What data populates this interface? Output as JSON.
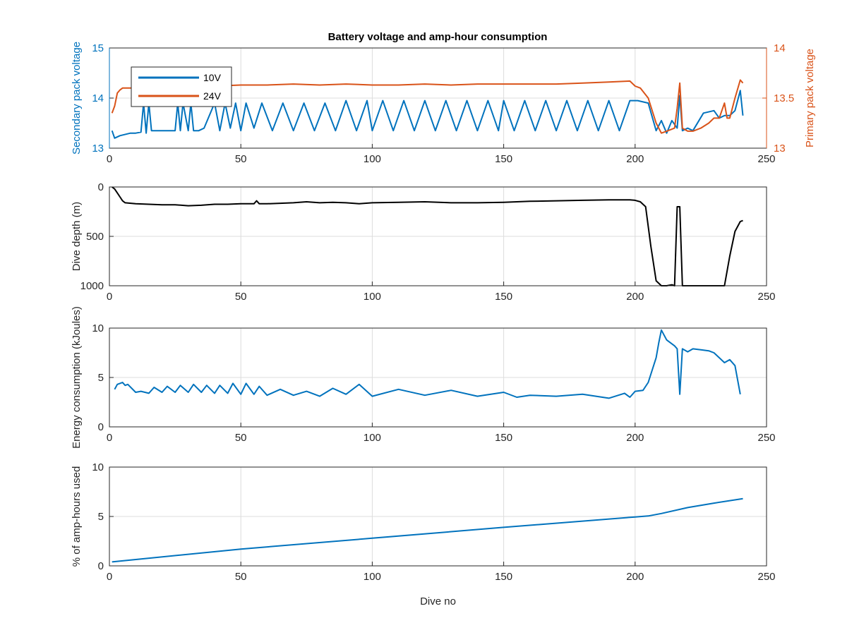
{
  "title": "Battery voltage and amp-hour consumption",
  "colors": {
    "blue": "#0072BD",
    "orange": "#D95319",
    "black": "#000000"
  },
  "chart_data": [
    {
      "type": "line",
      "title": "Battery voltage and amp-hour consumption",
      "xlabel": "",
      "ylabel": "Secondary pack voltage",
      "ylabel_right": "Primary pack voltage",
      "xlim": [
        0,
        250
      ],
      "ylim": [
        13,
        15
      ],
      "ylim_right": [
        13,
        14
      ],
      "xticks": [
        "0",
        "50",
        "100",
        "150",
        "200",
        "250"
      ],
      "yticks": [
        "13",
        "14",
        "15"
      ],
      "yticks_right": [
        "13",
        "13.5",
        "14"
      ],
      "grid": true,
      "legend": {
        "position": "top-left",
        "entries": [
          "10V",
          "24V"
        ]
      },
      "series": [
        {
          "name": "10V",
          "axis": "left",
          "color": "#0072BD",
          "x": [
            1,
            2,
            4,
            8,
            10,
            12,
            13,
            14,
            15,
            16,
            18,
            20,
            22,
            25,
            26,
            27,
            28,
            30,
            31,
            32,
            34,
            36,
            40,
            42,
            44,
            46,
            48,
            50,
            52,
            55,
            58,
            62,
            66,
            70,
            74,
            78,
            82,
            86,
            90,
            94,
            98,
            100,
            104,
            108,
            112,
            116,
            120,
            124,
            128,
            132,
            136,
            140,
            144,
            148,
            150,
            154,
            158,
            162,
            166,
            170,
            174,
            178,
            182,
            186,
            190,
            194,
            198,
            201,
            205,
            208,
            210,
            212,
            214,
            216,
            217,
            218,
            220,
            222,
            226,
            230,
            232,
            234,
            236,
            238,
            240,
            241
          ],
          "y": [
            13.35,
            13.2,
            13.25,
            13.3,
            13.3,
            13.32,
            13.9,
            13.3,
            13.9,
            13.35,
            13.35,
            13.35,
            13.35,
            13.35,
            13.9,
            13.35,
            13.9,
            13.35,
            13.9,
            13.35,
            13.35,
            13.4,
            13.9,
            13.35,
            13.9,
            13.4,
            13.9,
            13.35,
            13.9,
            13.4,
            13.9,
            13.35,
            13.9,
            13.35,
            13.9,
            13.35,
            13.9,
            13.35,
            13.95,
            13.35,
            13.95,
            13.35,
            13.95,
            13.35,
            13.95,
            13.35,
            13.95,
            13.35,
            13.95,
            13.35,
            13.95,
            13.35,
            13.95,
            13.35,
            13.95,
            13.35,
            13.95,
            13.35,
            13.95,
            13.35,
            13.95,
            13.35,
            13.95,
            13.35,
            13.95,
            13.35,
            13.95,
            13.95,
            13.9,
            13.35,
            13.55,
            13.3,
            13.55,
            13.4,
            14.05,
            13.35,
            13.4,
            13.35,
            13.7,
            13.75,
            13.6,
            13.65,
            13.65,
            13.75,
            14.15,
            13.65
          ]
        },
        {
          "name": "24V",
          "axis": "right",
          "color": "#D95319",
          "x": [
            1,
            2,
            3,
            4,
            5,
            6,
            8,
            10,
            15,
            20,
            30,
            40,
            50,
            60,
            70,
            80,
            90,
            100,
            110,
            120,
            130,
            140,
            150,
            160,
            170,
            180,
            190,
            198,
            200,
            202,
            205,
            208,
            210,
            212,
            215,
            216,
            217,
            218,
            220,
            222,
            225,
            228,
            230,
            232,
            234,
            235,
            236,
            238,
            240,
            241
          ],
          "y": [
            13.35,
            13.42,
            13.55,
            13.58,
            13.6,
            13.6,
            13.6,
            13.6,
            13.6,
            13.61,
            13.61,
            13.62,
            13.63,
            13.63,
            13.64,
            13.63,
            13.64,
            13.63,
            13.63,
            13.64,
            13.63,
            13.64,
            13.64,
            13.64,
            13.64,
            13.65,
            13.66,
            13.67,
            13.62,
            13.6,
            13.5,
            13.25,
            13.15,
            13.17,
            13.2,
            13.4,
            13.65,
            13.2,
            13.17,
            13.17,
            13.2,
            13.25,
            13.3,
            13.3,
            13.45,
            13.3,
            13.3,
            13.5,
            13.68,
            13.65
          ]
        }
      ]
    },
    {
      "type": "line",
      "xlabel": "",
      "ylabel": "Dive depth (m)",
      "xlim": [
        0,
        250
      ],
      "ylim": [
        0,
        1000
      ],
      "y_reversed": true,
      "xticks": [
        "0",
        "50",
        "100",
        "150",
        "200",
        "250"
      ],
      "yticks": [
        "0",
        "500",
        "1000"
      ],
      "grid": true,
      "series": [
        {
          "color": "#000000",
          "x": [
            1,
            2,
            3,
            4,
            5,
            6,
            10,
            15,
            20,
            25,
            30,
            35,
            40,
            45,
            50,
            55,
            56,
            57,
            60,
            65,
            70,
            75,
            80,
            85,
            90,
            95,
            100,
            110,
            120,
            130,
            140,
            150,
            160,
            170,
            180,
            190,
            198,
            200,
            202,
            204,
            206,
            208,
            210,
            212,
            214,
            215,
            216,
            217,
            218,
            219,
            220,
            222,
            225,
            230,
            234,
            236,
            238,
            240,
            241
          ],
          "y": [
            0,
            20,
            60,
            100,
            140,
            160,
            170,
            175,
            180,
            180,
            190,
            185,
            175,
            175,
            170,
            170,
            140,
            170,
            170,
            165,
            160,
            150,
            160,
            155,
            160,
            170,
            160,
            155,
            150,
            160,
            160,
            155,
            145,
            140,
            135,
            130,
            130,
            135,
            150,
            200,
            600,
            950,
            1000,
            1000,
            990,
            1000,
            200,
            200,
            1000,
            1000,
            1000,
            1000,
            1000,
            1000,
            1000,
            700,
            450,
            350,
            340
          ]
        }
      ]
    },
    {
      "type": "line",
      "xlabel": "",
      "ylabel": "Energy consumption (kJoules)",
      "xlim": [
        0,
        250
      ],
      "ylim": [
        0,
        10
      ],
      "xticks": [
        "0",
        "50",
        "100",
        "150",
        "200",
        "250"
      ],
      "yticks": [
        "0",
        "5",
        "10"
      ],
      "grid": true,
      "series": [
        {
          "color": "#0072BD",
          "x": [
            2,
            3,
            4,
            5,
            6,
            7,
            10,
            12,
            15,
            17,
            20,
            22,
            25,
            27,
            30,
            32,
            35,
            37,
            40,
            42,
            45,
            47,
            50,
            52,
            55,
            57,
            60,
            65,
            70,
            75,
            80,
            85,
            90,
            95,
            100,
            110,
            120,
            130,
            140,
            150,
            155,
            160,
            170,
            180,
            190,
            196,
            198,
            200,
            203,
            205,
            208,
            209,
            210,
            212,
            215,
            216,
            217,
            218,
            220,
            222,
            225,
            228,
            230,
            232,
            234,
            236,
            238,
            240
          ],
          "y": [
            3.8,
            4.3,
            4.4,
            4.5,
            4.2,
            4.3,
            3.5,
            3.6,
            3.4,
            4.0,
            3.5,
            4.1,
            3.5,
            4.2,
            3.5,
            4.3,
            3.5,
            4.2,
            3.4,
            4.2,
            3.4,
            4.4,
            3.3,
            4.4,
            3.3,
            4.1,
            3.2,
            3.8,
            3.2,
            3.6,
            3.1,
            3.9,
            3.3,
            4.3,
            3.1,
            3.8,
            3.2,
            3.7,
            3.1,
            3.5,
            3.0,
            3.2,
            3.1,
            3.3,
            2.9,
            3.4,
            3.0,
            3.6,
            3.7,
            4.5,
            7.0,
            8.5,
            9.8,
            8.8,
            8.2,
            7.9,
            3.3,
            7.9,
            7.6,
            7.9,
            7.8,
            7.7,
            7.5,
            7.0,
            6.5,
            6.8,
            6.2,
            3.3
          ]
        }
      ]
    },
    {
      "type": "line",
      "xlabel": "Dive no",
      "ylabel": "% of amp-hours used",
      "xlim": [
        0,
        250
      ],
      "ylim": [
        0,
        10
      ],
      "xticks": [
        "0",
        "50",
        "100",
        "150",
        "200",
        "250"
      ],
      "yticks": [
        "0",
        "5",
        "10"
      ],
      "grid": true,
      "series": [
        {
          "color": "#0072BD",
          "x": [
            1,
            50,
            100,
            150,
            200,
            205,
            210,
            220,
            230,
            241
          ],
          "y": [
            0.4,
            1.7,
            2.8,
            3.9,
            4.95,
            5.05,
            5.3,
            5.9,
            6.35,
            6.8
          ]
        }
      ]
    }
  ]
}
